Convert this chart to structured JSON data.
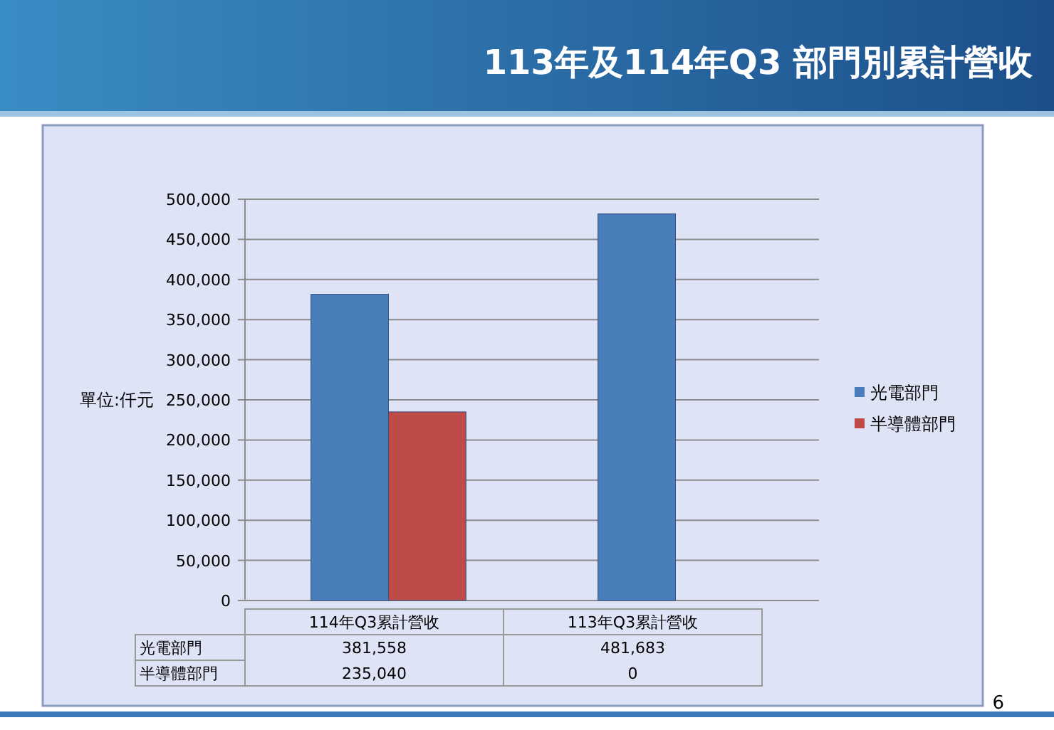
{
  "chart_data": {
    "type": "bar",
    "title": "113年及114年Q3 部門別累計營收",
    "ylabel": "單位:仟元",
    "categories": [
      "114年Q3累計營收",
      "113年Q3累計營收"
    ],
    "series": [
      {
        "name": "光電部門",
        "color": "#4a7ebb",
        "values": [
          381558,
          481683
        ],
        "value_labels": [
          "381,558",
          "481,683"
        ]
      },
      {
        "name": "半導體部門",
        "color": "#be4b48",
        "values": [
          235040,
          0
        ],
        "value_labels": [
          "235,040",
          "0"
        ]
      }
    ],
    "ylim": [
      0,
      500000
    ],
    "yticks": [
      0,
      {
        "value": 50000,
        "label": "50,000"
      },
      {
        "value": 100000,
        "label": "100,000"
      },
      {
        "value": 150000,
        "label": "150,000"
      },
      {
        "value": 200000,
        "label": "200,000"
      },
      {
        "value": 250000,
        "label": "250,000"
      },
      {
        "value": 300000,
        "label": "300,000"
      },
      {
        "value": 350000,
        "label": "350,000"
      },
      {
        "value": 400000,
        "label": "400,000"
      },
      {
        "value": 450000,
        "label": "450,000"
      },
      {
        "value": 500000,
        "label": "500,000"
      }
    ],
    "grid": "y",
    "legend": "right",
    "annotations": [
      "6"
    ]
  }
}
